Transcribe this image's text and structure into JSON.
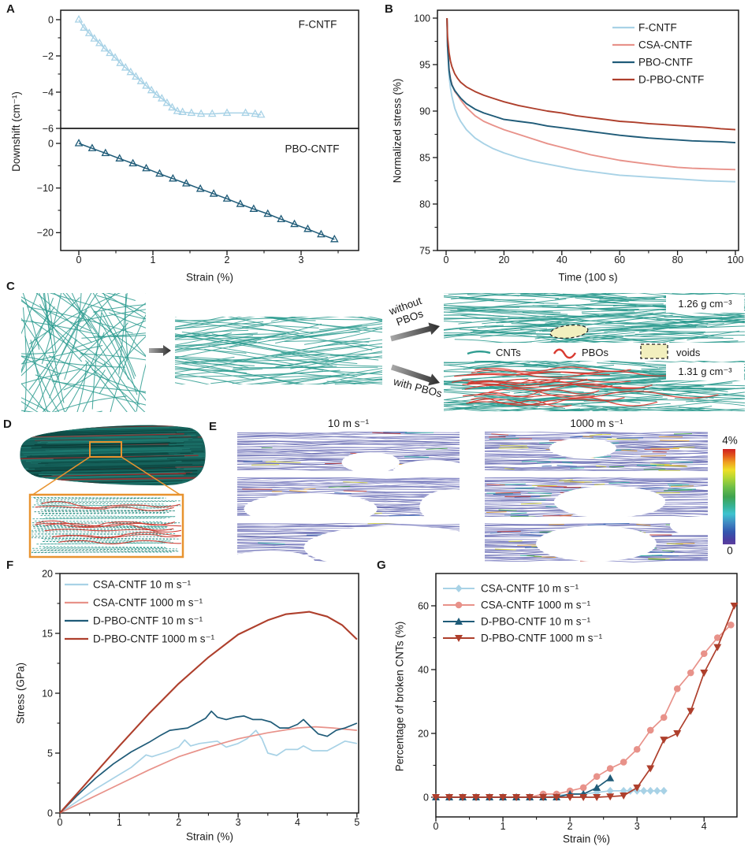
{
  "colors": {
    "light_blue": "#a8d2e6",
    "salmon": "#e8928a",
    "dark_teal": "#1f5b78",
    "brick": "#ae3f2c",
    "cnt_teal": "#2e9c90",
    "pbo_red": "#d93a30",
    "void_yellow": "#f2efbe",
    "accent_orange": "#e8932f",
    "map_purple": "#7b7ec0"
  },
  "panel_letters": {
    "a": "A",
    "b": "B",
    "c": "C",
    "d": "D",
    "e": "E",
    "f": "F",
    "g": "G"
  },
  "panel_c": {
    "arrow_top": "without\nPBOs",
    "arrow_bottom": "with PBOs",
    "density_without": "1.26 g cm⁻³",
    "density_with": "1.31 g cm⁻³",
    "legend": {
      "cnts": "CNTs",
      "pbos": "PBOs",
      "voids": "voids"
    }
  },
  "panel_e": {
    "col_left": "10 m s⁻¹",
    "col_right": "1000 m s⁻¹",
    "colorbar_max": "4%",
    "colorbar_min": "0"
  },
  "chart_data": [
    {
      "id": "A",
      "type": "line",
      "xlabel": "Strain (%)",
      "ylabel": "Downshift (cm⁻¹)",
      "xlim": [
        -0.245,
        3.777
      ],
      "xticks": [
        0,
        1,
        2,
        3
      ],
      "subplots": [
        {
          "annotation": "F-CNTF",
          "ylim": [
            -6,
            0.52
          ],
          "yticks": [
            0,
            -2,
            -4,
            -6
          ],
          "series": {
            "name": "F-CNTF",
            "color": "light_blue",
            "x": [
              0,
              0.07,
              0.14,
              0.21,
              0.28,
              0.35,
              0.42,
              0.49,
              0.56,
              0.63,
              0.7,
              0.77,
              0.84,
              0.91,
              0.98,
              1.05,
              1.12,
              1.19,
              1.26,
              1.33,
              1.4,
              1.52,
              1.65,
              1.8,
              2.0,
              2.25,
              2.38,
              2.46
            ],
            "y": [
              0,
              -0.45,
              -0.75,
              -1.05,
              -1.3,
              -1.6,
              -1.85,
              -2.1,
              -2.4,
              -2.65,
              -2.9,
              -3.15,
              -3.4,
              -3.65,
              -3.9,
              -4.15,
              -4.35,
              -4.6,
              -4.85,
              -5.05,
              -5.1,
              -5.15,
              -5.2,
              -5.2,
              -5.15,
              -5.15,
              -5.2,
              -5.25
            ]
          }
        },
        {
          "annotation": "PBO-CNTF",
          "ylim": [
            -24,
            3.36
          ],
          "yticks": [
            0,
            -10,
            -20
          ],
          "series": {
            "name": "PBO-CNTF",
            "color": "dark_teal",
            "x": [
              0,
              0.18,
              0.36,
              0.55,
              0.73,
              0.91,
              1.09,
              1.27,
              1.45,
              1.64,
              1.82,
              2.0,
              2.18,
              2.36,
              2.55,
              2.73,
              2.91,
              3.09,
              3.27,
              3.45
            ],
            "y": [
              0,
              -1.1,
              -2.2,
              -3.4,
              -4.5,
              -5.6,
              -6.8,
              -7.9,
              -9.0,
              -10.2,
              -11.3,
              -12.4,
              -13.6,
              -14.7,
              -15.8,
              -17.0,
              -18.1,
              -19.2,
              -20.4,
              -21.5
            ]
          }
        }
      ]
    },
    {
      "id": "B",
      "type": "line",
      "xlabel": "Time (100 s)",
      "ylabel": "Normalized stress (%)",
      "xlim": [
        -3,
        101.1
      ],
      "ylim": [
        75,
        100.85
      ],
      "xticks": [
        0,
        20,
        40,
        60,
        80,
        100
      ],
      "yticks": [
        75,
        80,
        85,
        90,
        95,
        100
      ],
      "x": [
        0.3,
        0.5,
        1,
        1.5,
        2,
        3,
        4,
        5,
        7,
        10,
        13,
        16,
        20,
        25,
        30,
        35,
        40,
        45,
        50,
        55,
        60,
        65,
        70,
        75,
        80,
        85,
        90,
        95,
        100
      ],
      "series": [
        {
          "name": "F-CNTF",
          "color": "light_blue",
          "y": [
            100,
            97,
            93.8,
            92.5,
            91.6,
            90.3,
            89.5,
            88.9,
            88.0,
            87.1,
            86.5,
            86.0,
            85.5,
            85.0,
            84.6,
            84.3,
            84.0,
            83.7,
            83.5,
            83.3,
            83.1,
            83.0,
            82.9,
            82.8,
            82.7,
            82.6,
            82.5,
            82.45,
            82.4
          ]
        },
        {
          "name": "CSA-CNTF",
          "color": "salmon",
          "y": [
            100,
            97.5,
            94.6,
            93.5,
            92.9,
            92.1,
            91.7,
            91.2,
            90.4,
            89.5,
            88.9,
            88.5,
            88.0,
            87.5,
            87.0,
            86.5,
            86.1,
            85.7,
            85.3,
            85.0,
            84.7,
            84.5,
            84.3,
            84.1,
            83.95,
            83.85,
            83.8,
            83.75,
            83.7
          ]
        },
        {
          "name": "PBO-CNTF",
          "color": "dark_teal",
          "y": [
            100,
            97,
            94.4,
            93.4,
            92.8,
            92.2,
            91.8,
            91.4,
            90.8,
            90.2,
            89.8,
            89.5,
            89.1,
            88.9,
            88.7,
            88.4,
            88.2,
            88.0,
            87.8,
            87.6,
            87.4,
            87.25,
            87.1,
            87.0,
            86.9,
            86.8,
            86.75,
            86.7,
            86.6
          ]
        },
        {
          "name": "D-PBO-CNTF",
          "color": "brick",
          "y": [
            100,
            98,
            96.3,
            95.4,
            94.8,
            94.0,
            93.5,
            93.1,
            92.6,
            92.1,
            91.7,
            91.4,
            91.0,
            90.6,
            90.3,
            90.0,
            89.8,
            89.5,
            89.3,
            89.1,
            88.9,
            88.8,
            88.65,
            88.55,
            88.45,
            88.35,
            88.25,
            88.1,
            88.0
          ]
        }
      ]
    },
    {
      "id": "F",
      "type": "line",
      "xlabel": "Strain (%)",
      "ylabel": "Stress (GPa)",
      "xlim": [
        0,
        5.03
      ],
      "ylim": [
        0,
        20
      ],
      "xticks": [
        0,
        1,
        2,
        3,
        4,
        5
      ],
      "yticks": [
        0,
        5,
        10,
        15,
        20
      ],
      "series": [
        {
          "name": "CSA-CNTF 10 m s⁻¹",
          "color": "light_blue",
          "points": [
            [
              0,
              0
            ],
            [
              0.3,
              1.0
            ],
            [
              0.6,
              2.0
            ],
            [
              0.9,
              2.9
            ],
            [
              1.2,
              3.8
            ],
            [
              1.45,
              4.85
            ],
            [
              1.55,
              4.7
            ],
            [
              1.8,
              5.1
            ],
            [
              2.0,
              5.5
            ],
            [
              2.1,
              6.1
            ],
            [
              2.2,
              5.6
            ],
            [
              2.35,
              5.8
            ],
            [
              2.5,
              5.9
            ],
            [
              2.65,
              6.0
            ],
            [
              2.8,
              5.5
            ],
            [
              3.0,
              5.8
            ],
            [
              3.15,
              6.2
            ],
            [
              3.3,
              6.9
            ],
            [
              3.4,
              6.2
            ],
            [
              3.5,
              5.0
            ],
            [
              3.65,
              4.8
            ],
            [
              3.8,
              5.3
            ],
            [
              4.0,
              5.3
            ],
            [
              4.1,
              5.6
            ],
            [
              4.25,
              5.2
            ],
            [
              4.5,
              5.2
            ],
            [
              4.65,
              5.6
            ],
            [
              4.8,
              6.0
            ],
            [
              5.0,
              5.8
            ]
          ]
        },
        {
          "name": "CSA-CNTF 1000 m s⁻¹",
          "color": "salmon",
          "points": [
            [
              0,
              0
            ],
            [
              0.5,
              1.2
            ],
            [
              1,
              2.4
            ],
            [
              1.5,
              3.6
            ],
            [
              2,
              4.7
            ],
            [
              2.5,
              5.5
            ],
            [
              3,
              6.2
            ],
            [
              3.5,
              6.7
            ],
            [
              4,
              7.1
            ],
            [
              4.3,
              7.2
            ],
            [
              4.6,
              7.1
            ],
            [
              5,
              6.9
            ]
          ]
        },
        {
          "name": "D-PBO-CNTF 10 m s⁻¹",
          "color": "dark_teal",
          "points": [
            [
              0,
              0
            ],
            [
              0.3,
              1.5
            ],
            [
              0.6,
              2.9
            ],
            [
              0.9,
              4.1
            ],
            [
              1.2,
              5.1
            ],
            [
              1.5,
              5.9
            ],
            [
              1.7,
              6.5
            ],
            [
              1.85,
              6.9
            ],
            [
              2.0,
              7.0
            ],
            [
              2.15,
              7.1
            ],
            [
              2.3,
              7.5
            ],
            [
              2.45,
              7.9
            ],
            [
              2.55,
              8.5
            ],
            [
              2.65,
              8.0
            ],
            [
              2.8,
              7.8
            ],
            [
              2.95,
              8.0
            ],
            [
              3.1,
              8.1
            ],
            [
              3.25,
              7.8
            ],
            [
              3.4,
              7.8
            ],
            [
              3.55,
              7.6
            ],
            [
              3.7,
              7.1
            ],
            [
              3.85,
              7.1
            ],
            [
              4.0,
              7.4
            ],
            [
              4.1,
              7.8
            ],
            [
              4.2,
              7.3
            ],
            [
              4.35,
              6.6
            ],
            [
              4.5,
              6.4
            ],
            [
              4.65,
              6.9
            ],
            [
              4.8,
              7.1
            ],
            [
              5.0,
              7.5
            ]
          ]
        },
        {
          "name": "D-PBO-CNTF 1000 m s⁻¹",
          "color": "brick",
          "points": [
            [
              0,
              0
            ],
            [
              0.5,
              2.8
            ],
            [
              1,
              5.6
            ],
            [
              1.5,
              8.3
            ],
            [
              2,
              10.8
            ],
            [
              2.5,
              13.0
            ],
            [
              3,
              14.9
            ],
            [
              3.5,
              16.1
            ],
            [
              3.8,
              16.6
            ],
            [
              4.2,
              16.8
            ],
            [
              4.5,
              16.4
            ],
            [
              4.75,
              15.7
            ],
            [
              5,
              14.5
            ]
          ]
        }
      ]
    },
    {
      "id": "G",
      "type": "scatter-line",
      "xlabel": "Strain (%)",
      "ylabel": "Percentage of broken CNTs (%)",
      "xlim": [
        0,
        4.49
      ],
      "ylim": [
        -6.17,
        70.12
      ],
      "xticks": [
        0,
        1,
        2,
        3,
        4
      ],
      "yticks": [
        0,
        20,
        40,
        60
      ],
      "series": [
        {
          "name": "CSA-CNTF 10 m s⁻¹",
          "color": "light_blue",
          "marker": "diamond",
          "x": [
            0,
            0.2,
            0.4,
            0.6,
            0.8,
            1.0,
            1.2,
            1.4,
            1.6,
            1.8,
            2.0,
            2.2,
            2.4,
            2.6,
            2.8,
            2.9,
            3.0,
            3.1,
            3.2,
            3.3,
            3.4
          ],
          "y": [
            0,
            0,
            0,
            0,
            0,
            0,
            0,
            0,
            0,
            0.5,
            1,
            1,
            1.5,
            2,
            2,
            2,
            2,
            2,
            2,
            2,
            2
          ]
        },
        {
          "name": "CSA-CNTF 1000 m s⁻¹",
          "color": "salmon",
          "marker": "circle",
          "x": [
            0,
            0.2,
            0.4,
            0.6,
            0.8,
            1.0,
            1.2,
            1.4,
            1.6,
            1.8,
            2.0,
            2.2,
            2.4,
            2.6,
            2.8,
            3.0,
            3.2,
            3.4,
            3.6,
            3.8,
            4.0,
            4.2,
            4.4
          ],
          "y": [
            0,
            0,
            0,
            0,
            0,
            0,
            0,
            0,
            1,
            1,
            2,
            3,
            6.5,
            9,
            11,
            15,
            21,
            25,
            34,
            39,
            45,
            50,
            54
          ]
        },
        {
          "name": "D-PBO-CNTF 10 m s⁻¹",
          "color": "dark_teal",
          "marker": "triangle-up",
          "x": [
            0,
            0.2,
            0.4,
            0.6,
            0.8,
            1.0,
            1.2,
            1.4,
            1.6,
            1.8,
            2.0,
            2.2,
            2.4,
            2.6
          ],
          "y": [
            0,
            0,
            0,
            0,
            0,
            0,
            0,
            0,
            0,
            0,
            1,
            1,
            3,
            6
          ]
        },
        {
          "name": "D-PBO-CNTF 1000 m s⁻¹",
          "color": "brick",
          "marker": "triangle-down",
          "x": [
            0,
            0.2,
            0.4,
            0.6,
            0.8,
            1.0,
            1.2,
            1.4,
            1.6,
            1.8,
            2.0,
            2.2,
            2.4,
            2.6,
            2.8,
            3.0,
            3.2,
            3.4,
            3.6,
            3.8,
            4.0,
            4.2,
            4.45
          ],
          "y": [
            0,
            0,
            0,
            0,
            0,
            0,
            0,
            0,
            0,
            0,
            0,
            0,
            0,
            0.2,
            0.5,
            3,
            9,
            18,
            20,
            27,
            39,
            47,
            60
          ]
        }
      ]
    }
  ]
}
